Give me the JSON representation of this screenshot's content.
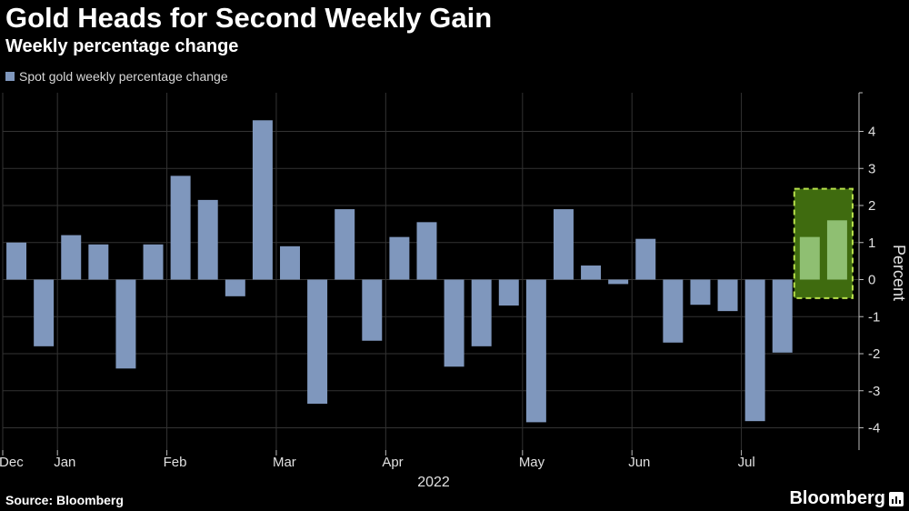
{
  "header": {
    "title": "Gold Heads for Second Weekly Gain",
    "subtitle": "Weekly percentage change"
  },
  "footer": {
    "source": "Source: Bloomberg",
    "brand": "Bloomberg"
  },
  "colors": {
    "bar": "#7f97bd",
    "highlight_bar": "#8fbf72",
    "highlight_box": "#3f6b0f",
    "highlight_border": "#b7e04a",
    "grid": "#333333",
    "axis_text": "#e0e0e0"
  },
  "chart_data": {
    "type": "bar",
    "title": "Gold Heads for Second Weekly Gain",
    "subtitle": "Weekly percentage change",
    "legend": [
      "Spot gold weekly percentage change"
    ],
    "ylabel": "Percent",
    "xlabel": "2022",
    "ylim": [
      -4.5,
      5
    ],
    "yticks": [
      -4,
      -3,
      -2,
      -1,
      0,
      1,
      2,
      3,
      4
    ],
    "grid": true,
    "values": [
      1.0,
      -1.8,
      1.2,
      0.95,
      -2.4,
      0.95,
      2.8,
      2.15,
      -0.45,
      4.3,
      0.9,
      -3.35,
      1.9,
      -1.65,
      1.15,
      1.55,
      -2.35,
      -1.8,
      -0.7,
      -3.85,
      1.9,
      0.38,
      -0.12,
      1.1,
      -1.7,
      -0.68,
      -0.85,
      -3.82,
      -1.97,
      1.15,
      1.6
    ],
    "highlight_indices": [
      29,
      30
    ],
    "month_labels": [
      {
        "label": "Dec",
        "index": 0
      },
      {
        "label": "Jan",
        "index": 2
      },
      {
        "label": "Feb",
        "index": 6
      },
      {
        "label": "Mar",
        "index": 10
      },
      {
        "label": "Apr",
        "index": 14
      },
      {
        "label": "May",
        "index": 19
      },
      {
        "label": "Jun",
        "index": 23
      },
      {
        "label": "Jul",
        "index": 27
      }
    ],
    "year_label": "2022"
  }
}
